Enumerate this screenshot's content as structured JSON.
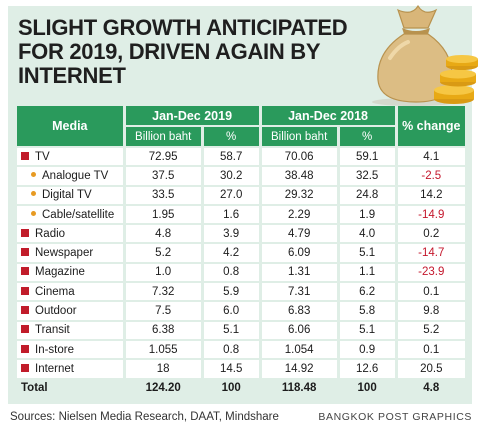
{
  "header": {
    "title_line1": "SLIGHT GROWTH ANTICIPATED",
    "title_line2": "FOR 2019, DRIVEN AGAIN BY INTERNET"
  },
  "colors": {
    "header_green": "#2a9a5c",
    "background_mint": "#dfeee6",
    "bullet_red": "#c11c2a",
    "bullet_orange": "#e79a22",
    "negative_red": "#c4172c"
  },
  "chart_data": {
    "type": "table",
    "columns": {
      "media": "Media",
      "period_2019": "Jan-Dec 2019",
      "period_2018": "Jan-Dec 2018",
      "billion_baht": "Billion baht",
      "percent": "%",
      "change": "% change"
    },
    "rows": [
      {
        "media": "TV",
        "level": 0,
        "b2019": "72.95",
        "p2019": "58.7",
        "b2018": "70.06",
        "p2018": "59.1",
        "change": "4.1",
        "negative": false
      },
      {
        "media": "Analogue TV",
        "level": 1,
        "b2019": "37.5",
        "p2019": "30.2",
        "b2018": "38.48",
        "p2018": "32.5",
        "change": "-2.5",
        "negative": true
      },
      {
        "media": "Digital TV",
        "level": 1,
        "b2019": "33.5",
        "p2019": "27.0",
        "b2018": "29.32",
        "p2018": "24.8",
        "change": "14.2",
        "negative": false
      },
      {
        "media": "Cable/satellite",
        "level": 1,
        "b2019": "1.95",
        "p2019": "1.6",
        "b2018": "2.29",
        "p2018": "1.9",
        "change": "-14.9",
        "negative": true
      },
      {
        "media": "Radio",
        "level": 0,
        "b2019": "4.8",
        "p2019": "3.9",
        "b2018": "4.79",
        "p2018": "4.0",
        "change": "0.2",
        "negative": false
      },
      {
        "media": "Newspaper",
        "level": 0,
        "b2019": "5.2",
        "p2019": "4.2",
        "b2018": "6.09",
        "p2018": "5.1",
        "change": "-14.7",
        "negative": true
      },
      {
        "media": "Magazine",
        "level": 0,
        "b2019": "1.0",
        "p2019": "0.8",
        "b2018": "1.31",
        "p2018": "1.1",
        "change": "-23.9",
        "negative": true
      },
      {
        "media": "Cinema",
        "level": 0,
        "b2019": "7.32",
        "p2019": "5.9",
        "b2018": "7.31",
        "p2018": "6.2",
        "change": "0.1",
        "negative": false
      },
      {
        "media": "Outdoor",
        "level": 0,
        "b2019": "7.5",
        "p2019": "6.0",
        "b2018": "6.83",
        "p2018": "5.8",
        "change": "9.8",
        "negative": false
      },
      {
        "media": "Transit",
        "level": 0,
        "b2019": "6.38",
        "p2019": "5.1",
        "b2018": "6.06",
        "p2018": "5.1",
        "change": "5.2",
        "negative": false
      },
      {
        "media": "In-store",
        "level": 0,
        "b2019": "1.055",
        "p2019": "0.8",
        "b2018": "1.054",
        "p2018": "0.9",
        "change": "0.1",
        "negative": false
      },
      {
        "media": "Internet",
        "level": 0,
        "b2019": "18",
        "p2019": "14.5",
        "b2018": "14.92",
        "p2018": "12.6",
        "change": "20.5",
        "negative": false
      }
    ],
    "total": {
      "media": "Total",
      "b2019": "124.20",
      "p2019": "100",
      "b2018": "118.48",
      "p2018": "100",
      "change": "4.8"
    }
  },
  "footer": {
    "sources": "Sources: Nielsen Media Research, DAAT, Mindshare",
    "credit": "BANGKOK POST GRAPHICS"
  }
}
